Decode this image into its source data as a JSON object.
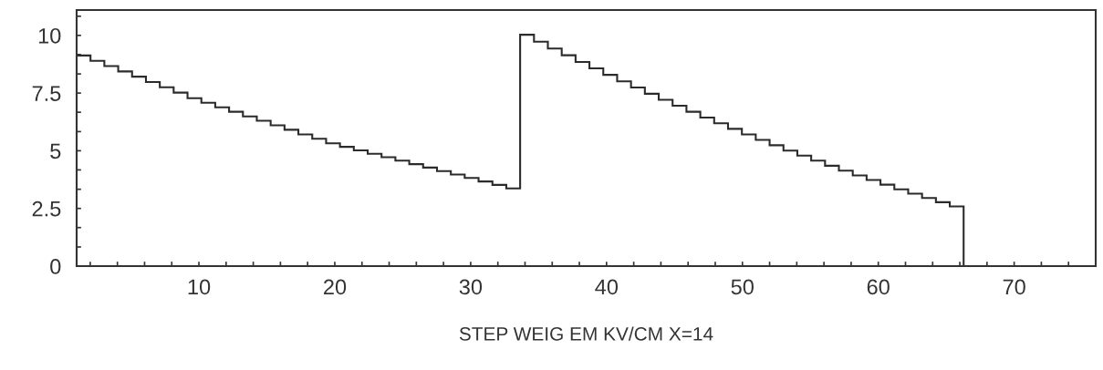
{
  "chart_data": {
    "type": "histogram",
    "xlabel": "STEP WEIG EM KV/CM X=14",
    "color": "#2b2b2b",
    "bins": [
      1.0,
      2.02,
      3.04,
      4.06,
      5.08,
      6.1,
      7.12,
      8.14,
      9.16,
      10.18,
      11.2,
      12.22,
      13.24,
      14.26,
      15.28,
      16.3,
      17.32,
      18.34,
      19.36,
      20.38,
      21.4,
      22.42,
      23.44,
      24.46,
      25.48,
      26.5,
      27.52,
      28.54,
      29.56,
      30.58,
      31.6,
      32.62,
      33.64,
      34.66,
      35.68,
      36.7,
      37.72,
      38.74,
      39.76,
      40.78,
      41.8,
      42.82,
      43.84,
      44.86,
      45.88,
      46.9,
      47.92,
      48.94,
      49.96,
      50.98,
      52.0,
      53.02,
      54.04,
      55.06,
      56.08,
      57.1,
      58.12,
      59.14,
      60.16,
      61.18,
      62.2,
      63.22,
      64.24,
      65.26,
      66.28
    ],
    "values": [
      9.13,
      8.9,
      8.67,
      8.44,
      8.21,
      7.98,
      7.75,
      7.52,
      7.28,
      7.08,
      6.88,
      6.69,
      6.49,
      6.3,
      6.1,
      5.91,
      5.71,
      5.52,
      5.32,
      5.17,
      5.02,
      4.87,
      4.72,
      4.57,
      4.42,
      4.27,
      4.12,
      3.97,
      3.82,
      3.67,
      3.52,
      3.37,
      10.03,
      9.73,
      9.43,
      9.14,
      8.85,
      8.57,
      8.29,
      8.01,
      7.74,
      7.47,
      7.21,
      6.95,
      6.69,
      6.44,
      6.19,
      5.95,
      5.71,
      5.47,
      5.24,
      5.01,
      4.79,
      4.57,
      4.35,
      4.14,
      3.93,
      3.73,
      3.53,
      3.33,
      3.14,
      2.95,
      2.77,
      2.59
    ],
    "xlim": [
      1,
      76
    ],
    "ylim": [
      0,
      11.1
    ],
    "xticks": [
      {
        "value": 2,
        "label": null
      },
      {
        "value": 4,
        "label": null
      },
      {
        "value": 6,
        "label": null
      },
      {
        "value": 8,
        "label": null
      },
      10,
      {
        "value": 12,
        "label": null
      },
      {
        "value": 14,
        "label": null
      },
      {
        "value": 16,
        "label": null
      },
      {
        "value": 18,
        "label": null
      },
      20,
      {
        "value": 22,
        "label": null
      },
      {
        "value": 24,
        "label": null
      },
      {
        "value": 26,
        "label": null
      },
      {
        "value": 28,
        "label": null
      },
      30,
      {
        "value": 32,
        "label": null
      },
      {
        "value": 34,
        "label": null
      },
      {
        "value": 36,
        "label": null
      },
      {
        "value": 38,
        "label": null
      },
      40,
      {
        "value": 42,
        "label": null
      },
      {
        "value": 44,
        "label": null
      },
      {
        "value": 46,
        "label": null
      },
      {
        "value": 48,
        "label": null
      },
      50,
      {
        "value": 52,
        "label": null
      },
      {
        "value": 54,
        "label": null
      },
      {
        "value": 56,
        "label": null
      },
      {
        "value": 58,
        "label": null
      },
      60,
      {
        "value": 62,
        "label": null
      },
      {
        "value": 64,
        "label": null
      },
      {
        "value": 66,
        "label": null
      },
      {
        "value": 68,
        "label": null
      },
      70,
      {
        "value": 72,
        "label": null
      },
      {
        "value": 74,
        "label": null
      }
    ],
    "yticks": [
      0,
      {
        "value": 0.83,
        "label": null
      },
      {
        "value": 1.67,
        "label": null
      },
      2.5,
      {
        "value": 3.33,
        "label": null
      },
      {
        "value": 4.17,
        "label": null
      },
      5,
      {
        "value": 5.83,
        "label": null
      },
      {
        "value": 6.67,
        "label": null
      },
      7.5,
      {
        "value": 8.33,
        "label": null
      },
      {
        "value": 9.17,
        "label": null
      },
      10,
      {
        "value": 10.83,
        "label": null
      }
    ],
    "grid": false
  }
}
